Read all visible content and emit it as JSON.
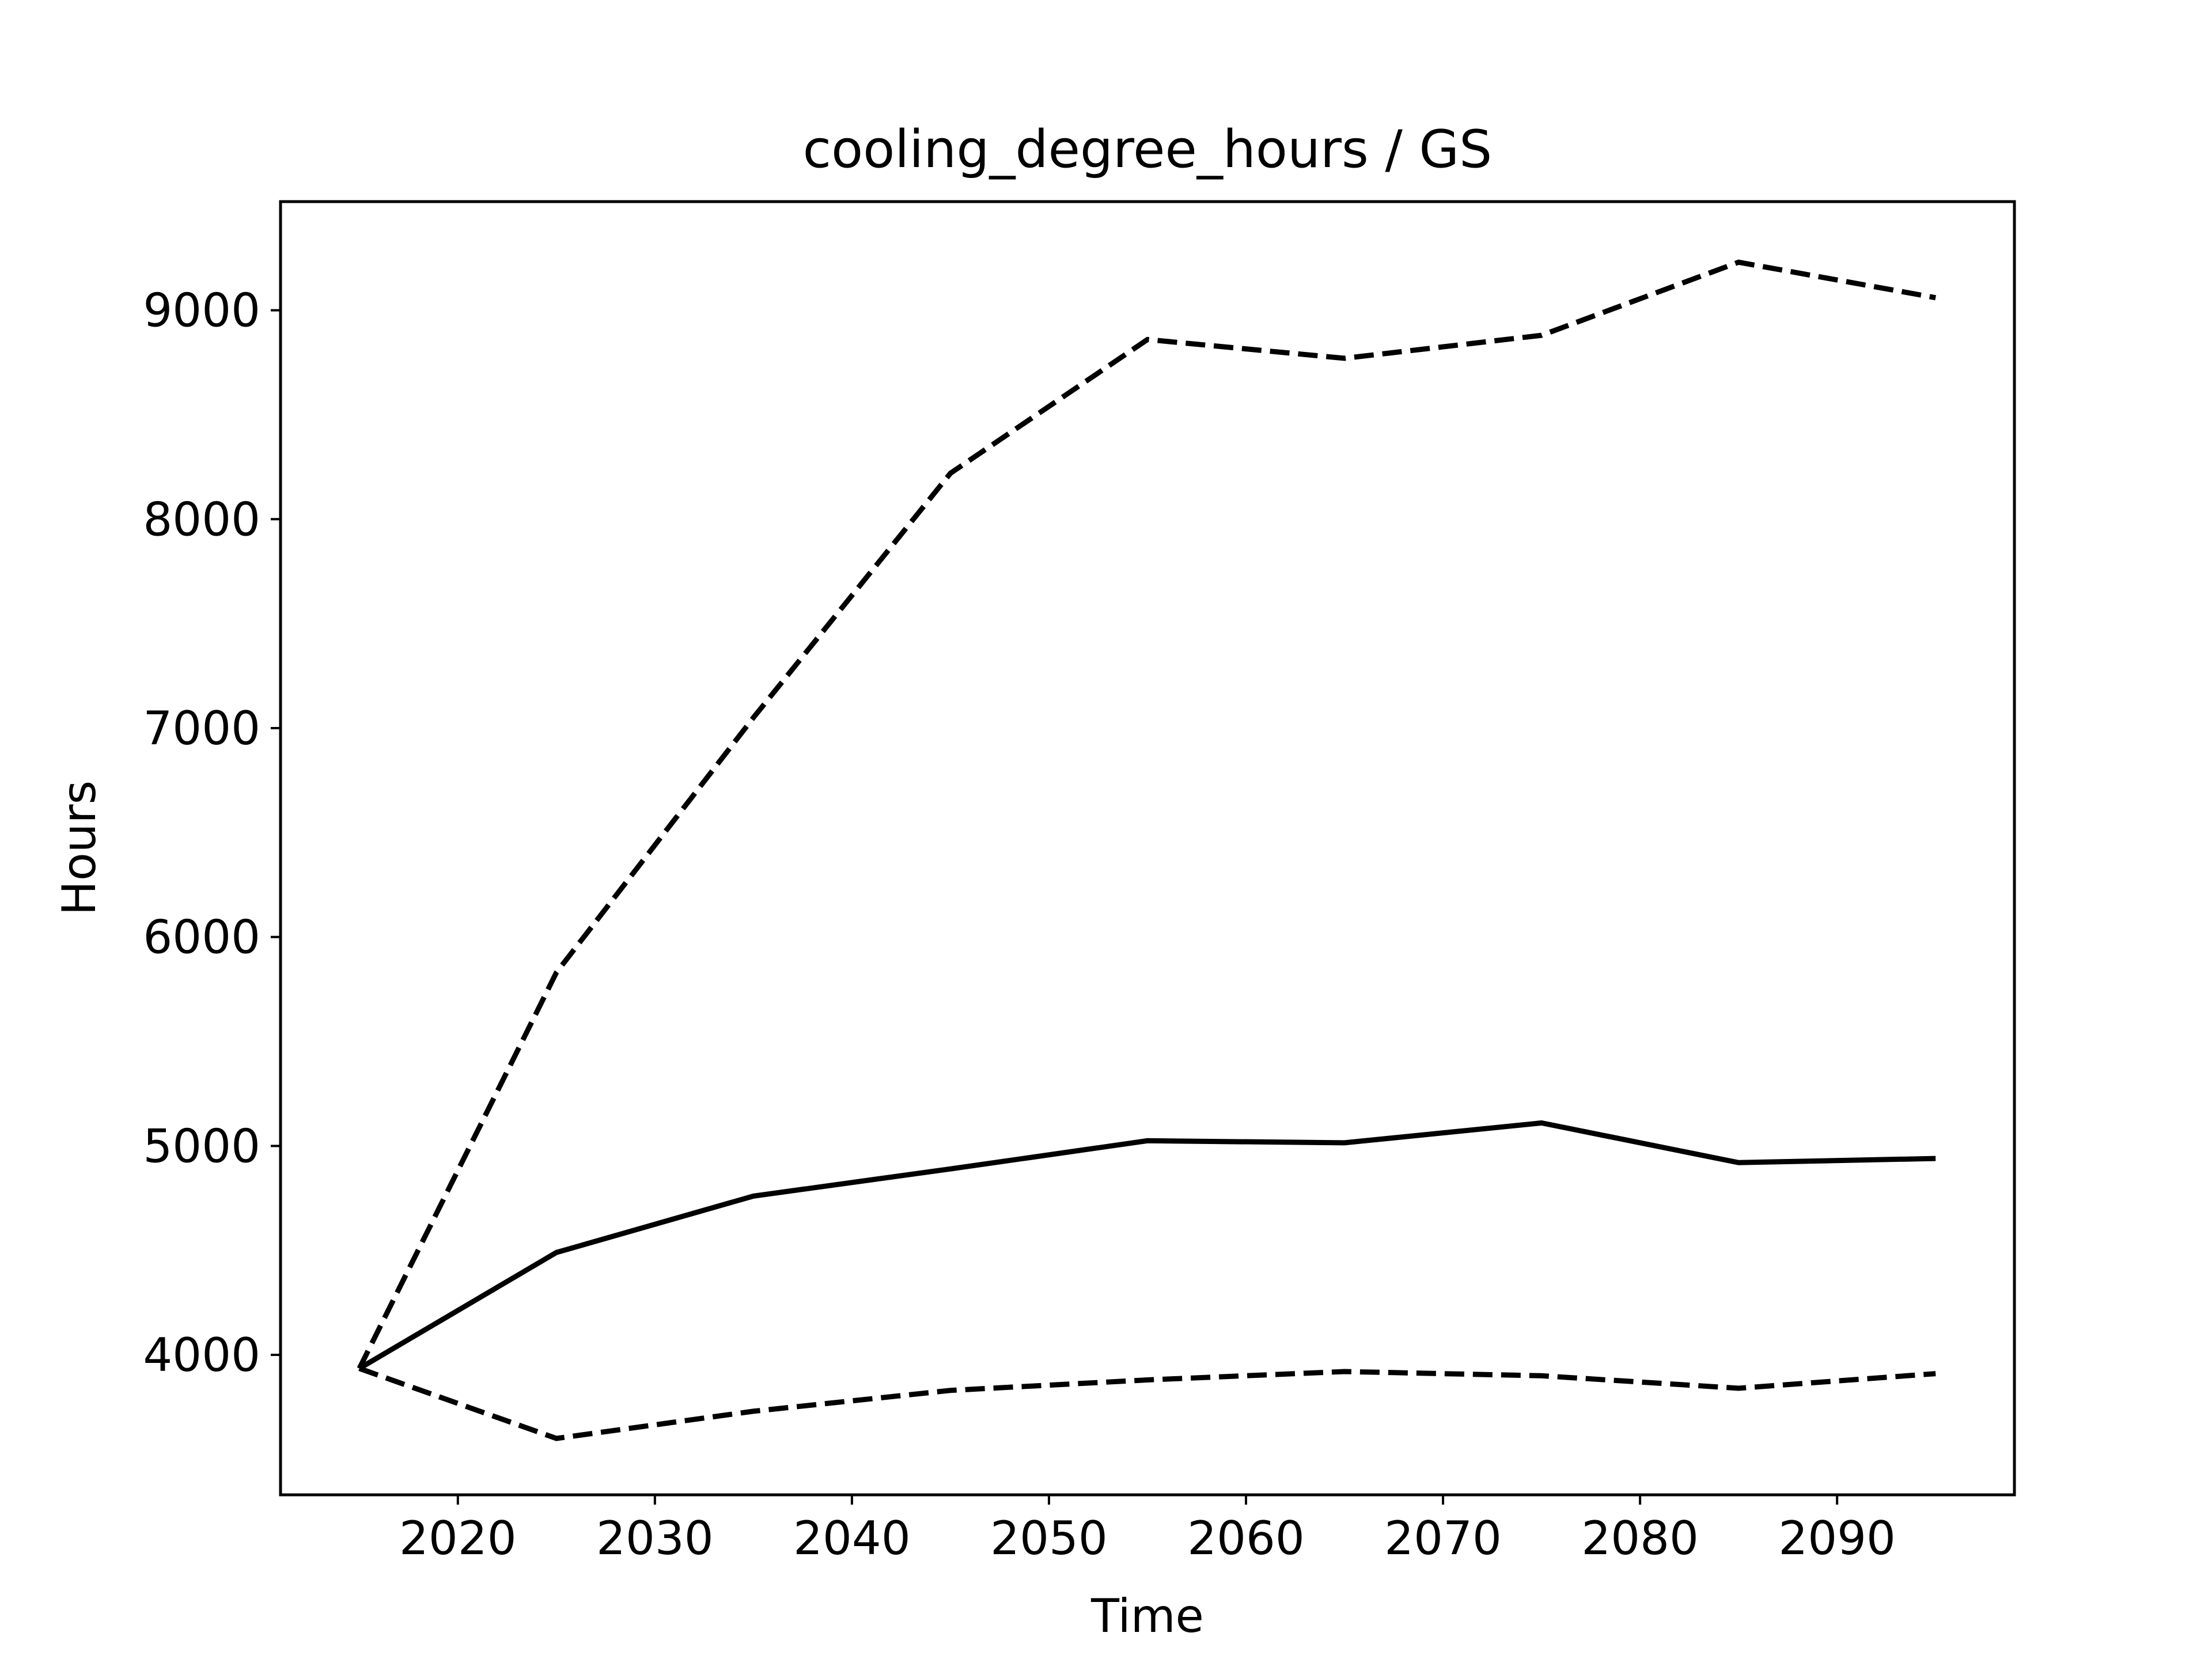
{
  "chart_data": {
    "type": "line",
    "title": "cooling_degree_hours / GS",
    "xlabel": "Time",
    "ylabel": "Hours",
    "xlim": [
      2011,
      2099
    ],
    "ylim": [
      3330,
      9520
    ],
    "xticks": [
      2020,
      2030,
      2040,
      2050,
      2060,
      2070,
      2080,
      2090
    ],
    "yticks": [
      4000,
      5000,
      6000,
      7000,
      8000,
      9000
    ],
    "grid": false,
    "legend": "none",
    "x": [
      2015,
      2025,
      2035,
      2045,
      2055,
      2065,
      2075,
      2085,
      2095
    ],
    "series": [
      {
        "values": [
          3935,
          4490,
          4760,
          4890,
          5025,
          5015,
          5110,
          4920,
          4940
        ],
        "style": "solid",
        "color": "#000000"
      },
      {
        "values": [
          3935,
          5830,
          7050,
          8220,
          8860,
          8770,
          8880,
          9230,
          9060
        ],
        "style": "dashed",
        "color": "#000000"
      },
      {
        "values": [
          3935,
          3600,
          3730,
          3830,
          3880,
          3920,
          3900,
          3840,
          3910
        ],
        "style": "dashed",
        "color": "#000000"
      }
    ]
  }
}
